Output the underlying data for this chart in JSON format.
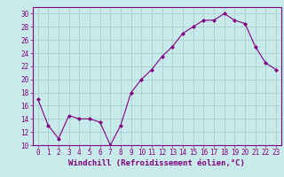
{
  "x": [
    0,
    1,
    2,
    3,
    4,
    5,
    6,
    7,
    8,
    9,
    10,
    11,
    12,
    13,
    14,
    15,
    16,
    17,
    18,
    19,
    20,
    21,
    22,
    23
  ],
  "y": [
    17,
    13,
    11,
    14.5,
    14,
    14,
    13.5,
    10,
    13,
    18,
    20,
    21.5,
    23.5,
    25,
    27,
    28,
    29,
    29,
    30,
    29,
    28.5,
    25,
    22.5,
    21.5
  ],
  "line_color": "#800080",
  "marker": "D",
  "marker_size": 2,
  "bg_color": "#c8eaea",
  "grid_color": "#a8d0d0",
  "xlabel": "Windchill (Refroidissement éolien,°C)",
  "ylim": [
    10,
    31
  ],
  "yticks": [
    10,
    12,
    14,
    16,
    18,
    20,
    22,
    24,
    26,
    28,
    30
  ],
  "xlim": [
    -0.5,
    23.5
  ],
  "xticks": [
    0,
    1,
    2,
    3,
    4,
    5,
    6,
    7,
    8,
    9,
    10,
    11,
    12,
    13,
    14,
    15,
    16,
    17,
    18,
    19,
    20,
    21,
    22,
    23
  ],
  "tick_color": "#800080",
  "label_color": "#800080",
  "tick_fontsize": 5.5,
  "xlabel_fontsize": 6.5
}
